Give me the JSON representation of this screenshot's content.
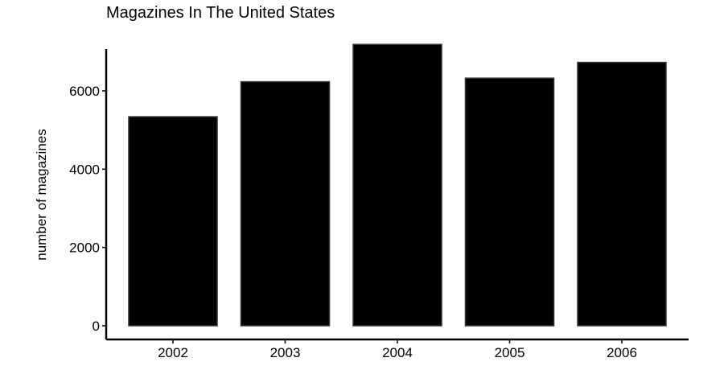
{
  "chart_data": {
    "type": "bar",
    "title": "Magazines In The United States",
    "xlabel": "",
    "ylabel": "number of magazines",
    "categories": [
      "2002",
      "2003",
      "2004",
      "2005",
      "2006"
    ],
    "values": [
      5340,
      6234,
      7188,
      6325,
      6728
    ],
    "ylim": [
      -350,
      7500
    ],
    "yticks": [
      0,
      2000,
      4000,
      6000
    ],
    "ytick_labels": [
      "0",
      "2000",
      "4000",
      "6000"
    ],
    "grid": false,
    "legend": "none",
    "colors": {
      "bar_fill": "#000000",
      "bar_stroke": "#333333",
      "axis": "#000000",
      "text": "#000000"
    }
  }
}
